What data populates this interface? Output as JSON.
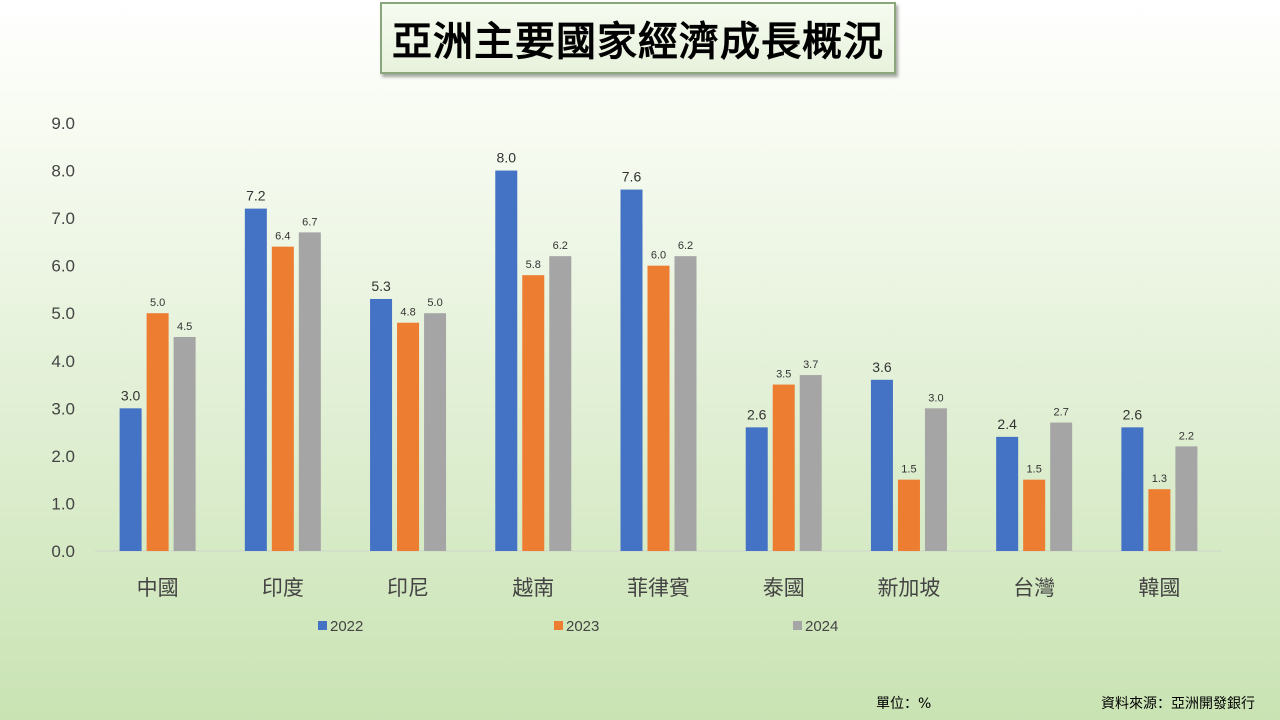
{
  "title": "亞洲主要國家經濟成長概況",
  "unit_note": "單位：%",
  "source_note": "資料來源：亞洲開發銀行",
  "chart_data": {
    "type": "bar",
    "title": "亞洲主要國家經濟成長概況",
    "categories": [
      "中國",
      "印度",
      "印尼",
      "越南",
      "菲律賓",
      "泰國",
      "新加坡",
      "台灣",
      "韓國"
    ],
    "series": [
      {
        "name": "2022",
        "color": "#4472c4",
        "values": [
          3.0,
          7.2,
          5.3,
          8.0,
          7.6,
          2.6,
          3.6,
          2.4,
          2.6
        ],
        "labels": [
          "3.0",
          "7.2",
          "5.3",
          "8.0",
          "7.6",
          "2.6",
          "3.6",
          "2.4",
          "2.6"
        ]
      },
      {
        "name": "2023",
        "color": "#ed7d31",
        "values": [
          5.0,
          6.4,
          4.8,
          5.8,
          6.0,
          3.5,
          1.5,
          1.5,
          1.3
        ],
        "labels": [
          "5.0",
          "6.4",
          "4.8",
          "5.8",
          "6.0",
          "3.5",
          "1.5",
          "1.5",
          "1.3"
        ]
      },
      {
        "name": "2024",
        "color": "#a5a5a5",
        "values": [
          4.5,
          6.7,
          5.0,
          6.2,
          6.2,
          3.7,
          3.0,
          2.7,
          2.2
        ],
        "labels": [
          "4.5",
          "6.7",
          "5.0",
          "6.2",
          "6.2",
          "3.7",
          "3.0",
          "2.7",
          "2.2"
        ]
      }
    ],
    "ylim": [
      0,
      9
    ],
    "yticks": [
      "0.0",
      "1.0",
      "2.0",
      "3.0",
      "4.0",
      "5.0",
      "6.0",
      "7.0",
      "8.0",
      "9.0"
    ],
    "grid": false,
    "legend": "bottom"
  }
}
